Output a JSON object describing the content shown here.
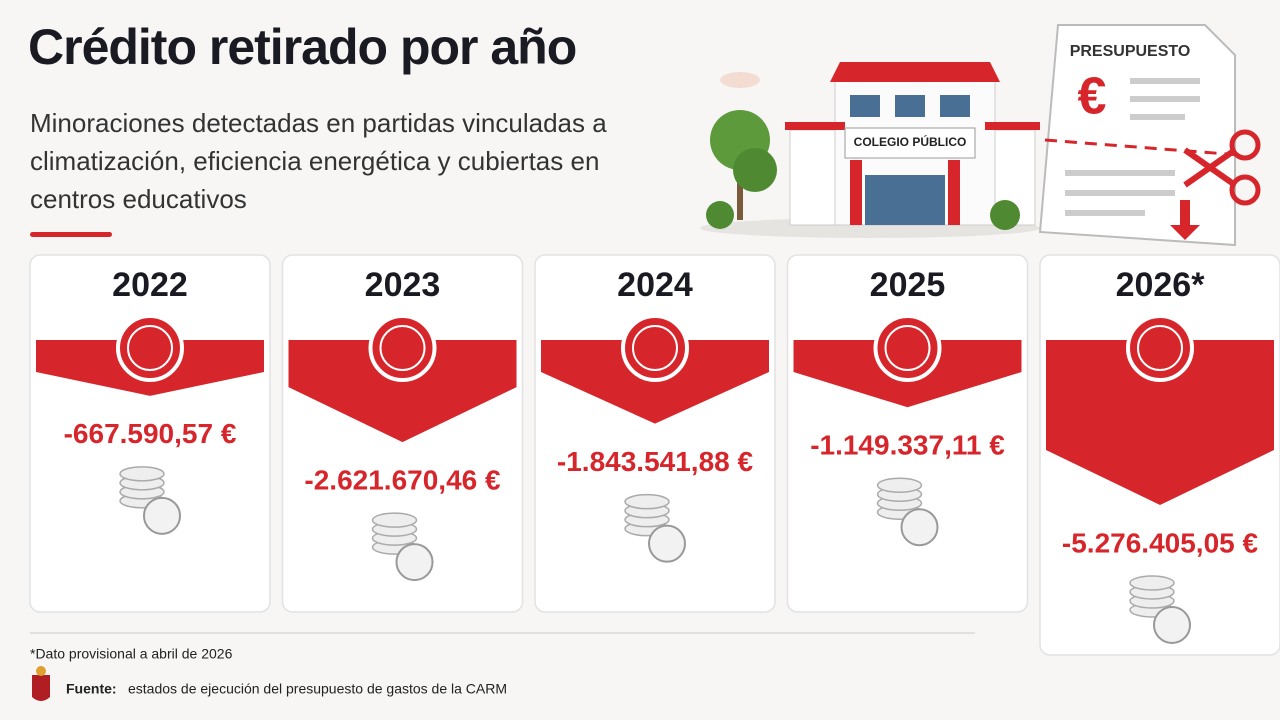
{
  "chart_data": {
    "type": "bar",
    "title": "Crédito retirado por año",
    "subtitle": "Minoraciones detectadas en partidas vinculadas a climatización, eficiencia energética y cubiertas en centros educativos",
    "categories": [
      "2022",
      "2023",
      "2024",
      "2025",
      "2026*"
    ],
    "values": [
      -667590.57,
      -2621670.46,
      -1843541.88,
      -1149337.11,
      -5276405.05
    ],
    "value_labels": [
      "-667.590,57 €",
      "-2.621.670,46 €",
      "-1.843.541,88 €",
      "-1.149.337,11 €",
      "-5.276.405,05 €"
    ],
    "color": "#d7262b",
    "footnote": "*Dato provisional a abril de 2026",
    "source_label": "Fuente:",
    "source_text": "estados de ejecución del presupuesto de gastos de la CARM",
    "illustration": {
      "sign": "COLEGIO PÚBLICO",
      "document": "PRESUPUESTO",
      "currency": "€"
    }
  }
}
